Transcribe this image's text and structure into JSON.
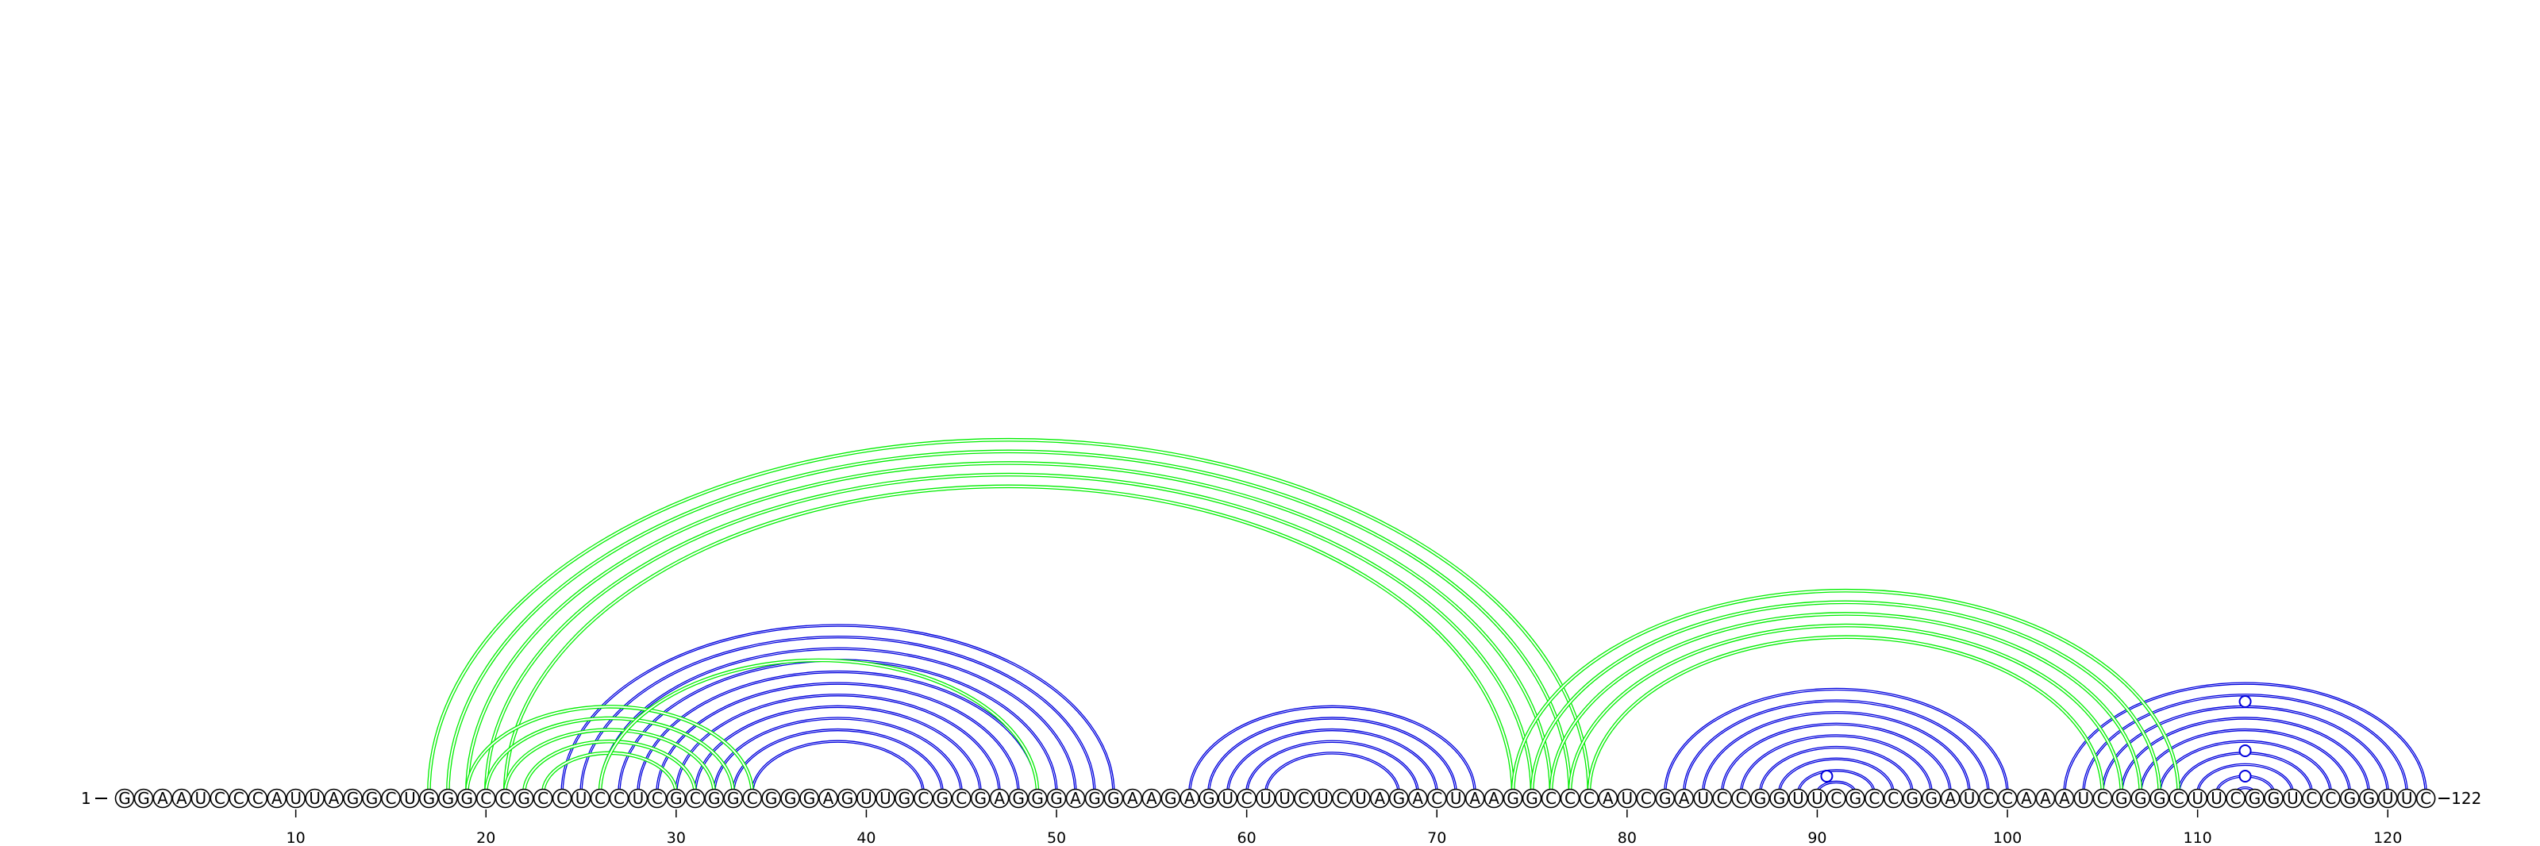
{
  "sequence": "GGAAUCCCAUUAGGCUGGGCCGCCUCCUCGCGGCGGGAGUUGCGCGAGGGAGGAAGAGUCUUCUCUAGACUAAGGCCCAUCGAUCCGGUUCGCCGGAUCCAAAUCGGGCUUCGGUCCGGUUC",
  "start_label": "1",
  "end_label": "122",
  "ticks": [
    {
      "pos": 10,
      "label": "10"
    },
    {
      "pos": 20,
      "label": "20"
    },
    {
      "pos": 30,
      "label": "30"
    },
    {
      "pos": 40,
      "label": "40"
    },
    {
      "pos": 50,
      "label": "50"
    },
    {
      "pos": 60,
      "label": "60"
    },
    {
      "pos": 70,
      "label": "70"
    },
    {
      "pos": 80,
      "label": "80"
    },
    {
      "pos": 90,
      "label": "90"
    },
    {
      "pos": 100,
      "label": "100"
    },
    {
      "pos": 110,
      "label": "110"
    },
    {
      "pos": 120,
      "label": "120"
    }
  ],
  "colors": {
    "blue": "#0000dd",
    "green": "#00ee00",
    "backbone": "#000000"
  },
  "arcs": {
    "blue": [
      [
        24,
        53
      ],
      [
        25,
        52
      ],
      [
        26,
        51
      ],
      [
        27,
        50
      ],
      [
        28,
        49
      ],
      [
        29,
        48
      ],
      [
        30,
        47
      ],
      [
        31,
        46
      ],
      [
        32,
        45
      ],
      [
        33,
        44
      ],
      [
        34,
        43
      ],
      [
        57,
        72
      ],
      [
        58,
        71
      ],
      [
        59,
        70
      ],
      [
        60,
        69
      ],
      [
        61,
        68
      ],
      [
        82,
        100
      ],
      [
        83,
        99
      ],
      [
        84,
        98
      ],
      [
        85,
        97
      ],
      [
        86,
        96
      ],
      [
        87,
        95
      ],
      [
        88,
        94
      ],
      [
        89,
        93
      ],
      [
        90,
        92
      ],
      [
        103,
        122
      ],
      [
        104,
        121
      ],
      [
        105,
        120
      ],
      [
        106,
        119
      ],
      [
        107,
        118
      ],
      [
        108,
        117
      ],
      [
        109,
        116
      ],
      [
        110,
        115
      ],
      [
        111,
        114
      ],
      [
        112,
        113
      ]
    ],
    "green": [
      [
        17,
        78
      ],
      [
        18,
        77
      ],
      [
        19,
        76
      ],
      [
        20,
        75
      ],
      [
        21,
        74
      ],
      [
        19,
        34
      ],
      [
        20,
        33
      ],
      [
        21,
        32
      ],
      [
        22,
        31
      ],
      [
        23,
        30
      ],
      [
        74,
        109
      ],
      [
        75,
        108
      ],
      [
        76,
        107
      ],
      [
        77,
        106
      ],
      [
        78,
        105
      ],
      [
        26,
        49
      ]
    ]
  },
  "markers": [
    90,
    112,
    112,
    112
  ]
}
